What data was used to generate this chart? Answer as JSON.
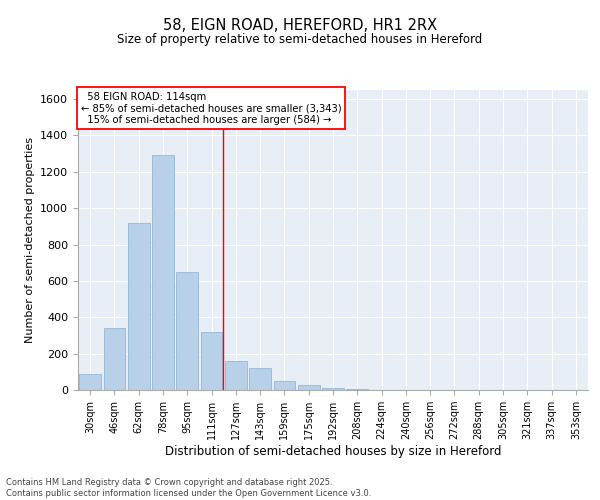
{
  "title_line1": "58, EIGN ROAD, HEREFORD, HR1 2RX",
  "title_line2": "Size of property relative to semi-detached houses in Hereford",
  "xlabel": "Distribution of semi-detached houses by size in Hereford",
  "ylabel": "Number of semi-detached properties",
  "bar_color": "#b8d0e8",
  "bar_edge_color": "#8ab0d0",
  "background_color": "#e8eef5",
  "categories": [
    "30sqm",
    "46sqm",
    "62sqm",
    "78sqm",
    "95sqm",
    "111sqm",
    "127sqm",
    "143sqm",
    "159sqm",
    "175sqm",
    "192sqm",
    "208sqm",
    "224sqm",
    "240sqm",
    "256sqm",
    "272sqm",
    "288sqm",
    "305sqm",
    "321sqm",
    "337sqm",
    "353sqm"
  ],
  "values": [
    90,
    340,
    920,
    1290,
    650,
    320,
    160,
    120,
    50,
    25,
    10,
    5,
    2,
    1,
    0,
    0,
    0,
    0,
    0,
    0,
    1
  ],
  "ylim": [
    0,
    1650
  ],
  "yticks": [
    0,
    200,
    400,
    600,
    800,
    1000,
    1200,
    1400,
    1600
  ],
  "property_label": "58 EIGN ROAD: 114sqm",
  "pct_smaller": 85,
  "n_smaller": 3343,
  "pct_larger": 15,
  "n_larger": 584,
  "redline_bin_index": 5,
  "footer_line1": "Contains HM Land Registry data © Crown copyright and database right 2025.",
  "footer_line2": "Contains public sector information licensed under the Open Government Licence v3.0."
}
